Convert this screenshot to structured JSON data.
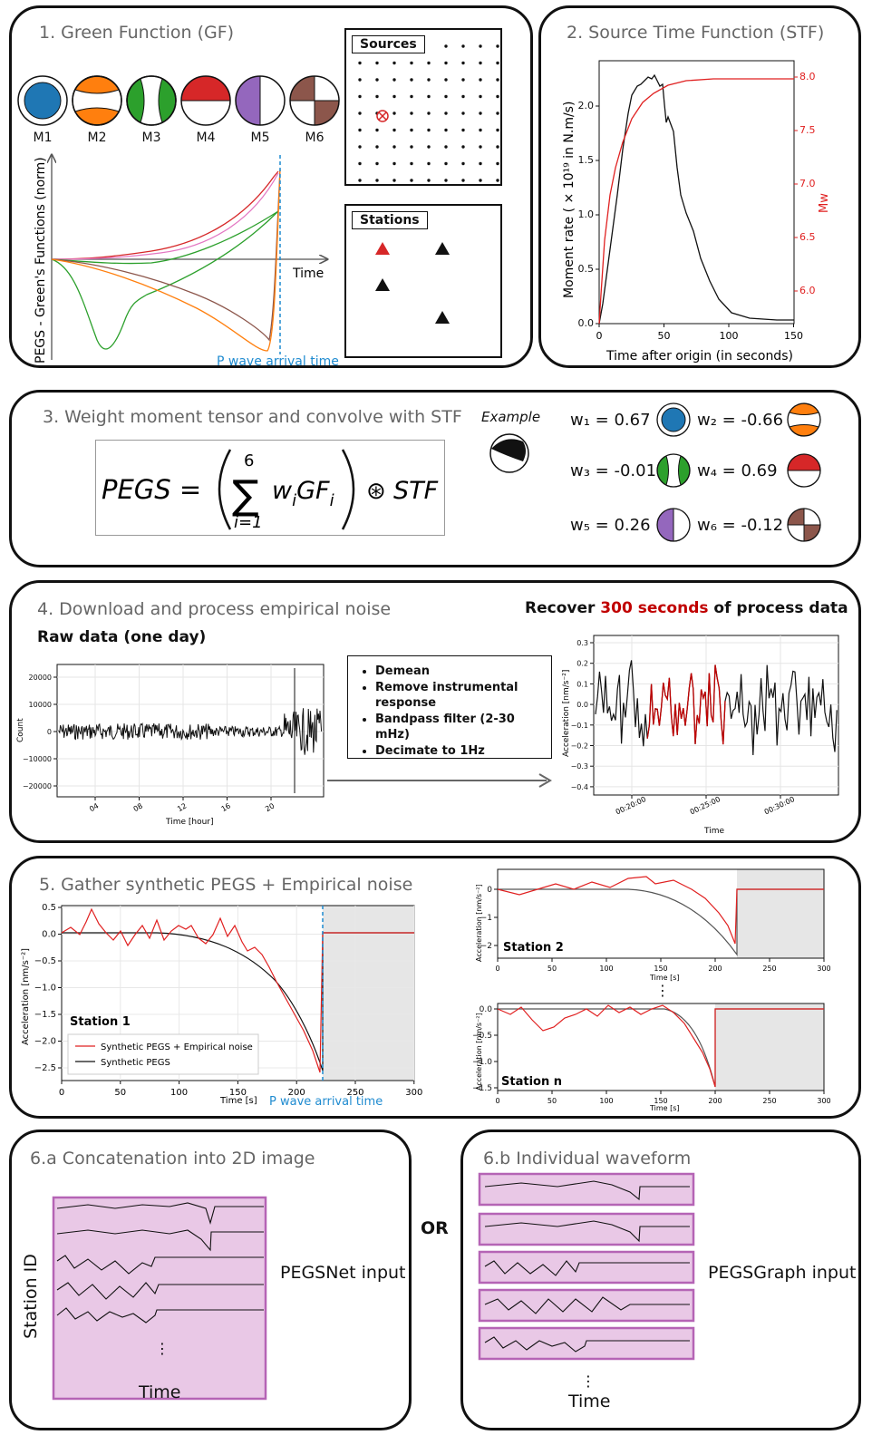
{
  "panel1": {
    "title": "1. Green Function (GF)",
    "mechanisms": [
      "M1",
      "M2",
      "M3",
      "M4",
      "M5",
      "M6"
    ],
    "ylabel": "PEGS - Green's Functions (norm)",
    "xlabel": "Time",
    "p_label": "P wave arrival time",
    "sources_label": "Sources",
    "stations_label": "Stations"
  },
  "panel2": {
    "title": "2. Source Time Function (STF)",
    "ylabel": "Moment rate ( × 10¹⁹ in N.m/s)",
    "y2label": "Mᵥᵤ",
    "y2label_text": "Mw",
    "xlabel": "Time after origin (in seconds)",
    "yticks": [
      "0.0",
      "0.5",
      "1.0",
      "1.5",
      "2.0"
    ],
    "y2ticks": [
      "6.0",
      "6.5",
      "7.0",
      "7.5",
      "8.0"
    ],
    "xticks": [
      "0",
      "50",
      "100",
      "150"
    ]
  },
  "panel3": {
    "title": "3. Weight moment tensor and convolve with STF",
    "example_label": "Example",
    "formula_lhs": "PEGS =",
    "formula_sum_top": "6",
    "formula_sum_bottom": "i=1",
    "formula_term": "w",
    "formula_term_sub": "i",
    "formula_gf": "GF",
    "formula_gf_sub": "i",
    "formula_op": "⊛",
    "formula_stf": "STF",
    "weights": [
      {
        "name": "w₁",
        "value": "0.67"
      },
      {
        "name": "w₂",
        "value": "-0.66"
      },
      {
        "name": "w₃",
        "value": "-0.01"
      },
      {
        "name": "w₄",
        "value": "0.69"
      },
      {
        "name": "w₅",
        "value": "0.26"
      },
      {
        "name": "w₆",
        "value": "-0.12"
      }
    ]
  },
  "panel4": {
    "title": "4. Download and process empirical noise",
    "raw_title": "Raw data (one day)",
    "recover_prefix": "Recover ",
    "recover_highlight": "300 seconds",
    "recover_suffix": " of process data",
    "steps": [
      "Demean",
      "Remove instrumental response",
      "Bandpass filter (2-30 mHz)",
      "Decimate to 1Hz"
    ],
    "raw_ylabel": "Count",
    "raw_xlabel": "Time [hour]",
    "raw_yticks": [
      "20000",
      "10000",
      "0",
      "−10000",
      "−20000"
    ],
    "raw_xticks": [
      "04",
      "08",
      "12",
      "16",
      "20"
    ],
    "proc_ylabel": "Acceleration [nm/s⁻²]",
    "proc_xlabel": "Time",
    "proc_yticks": [
      "0.3",
      "0.2",
      "0.1",
      "0.0",
      "−0.1",
      "−0.2",
      "−0.3",
      "−0.4"
    ],
    "proc_xticks": [
      "00:20:00",
      "00:25:00",
      "00:30:00"
    ]
  },
  "panel5": {
    "title": "5. Gather synthetic PEGS + Empirical noise",
    "station1": "Station 1",
    "station2": "Station 2",
    "stationn": "Station n",
    "legend_noise": "Synthetic PEGS + Empirical noise",
    "legend_synth": "Synthetic PEGS",
    "xlabel": "Time [s]",
    "ylabel": "Acceleration [nm/s⁻²]",
    "p_label": "P wave arrival time",
    "xticks": [
      "0",
      "50",
      "100",
      "150",
      "200",
      "250",
      "300"
    ],
    "s1_yticks": [
      "0.5",
      "0.0",
      "−0.5",
      "−1.0",
      "−1.5",
      "−2.0",
      "−2.5"
    ],
    "s2_yticks": [
      "0",
      "−1",
      "−2"
    ],
    "sn_yticks": [
      "0.0",
      "−0.5",
      "−1.0",
      "−1.5"
    ],
    "dots": "⋮"
  },
  "panel6a": {
    "title": "6.a Concatenation into 2D image",
    "ylabel": "Station ID",
    "xlabel": "Time",
    "input_label": "PEGSNet input",
    "dots": "⋮"
  },
  "or_label": "OR",
  "panel6b": {
    "title": "6.b Individual waveform",
    "xlabel": "Time",
    "input_label": "PEGSGraph input",
    "dots": "⋮"
  },
  "colors": {
    "red": "#d62728",
    "blue": "#1f77b4",
    "orange": "#ff7f0e",
    "green": "#2ca02c",
    "purple": "#9467bd",
    "brown": "#8c564b",
    "pink": "#e377c2",
    "cyan": "#1f8bd0",
    "panel_bg": "#e9c8e6",
    "panel_border": "#b564b5",
    "grey_zone": "#e6e6e6"
  }
}
